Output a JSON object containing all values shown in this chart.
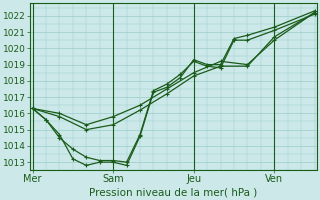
{
  "xlabel": "Pression niveau de la mer( hPa )",
  "bg_color": "#cce8e8",
  "grid_color": "#99cccc",
  "line_color": "#1a5c1a",
  "ylim": [
    1012.5,
    1022.8
  ],
  "yticks": [
    1013,
    1014,
    1015,
    1016,
    1017,
    1018,
    1019,
    1020,
    1021,
    1022
  ],
  "xlim": [
    -0.1,
    10.6
  ],
  "day_positions": [
    0.0,
    3.0,
    6.0,
    9.0
  ],
  "day_labels": [
    "Mer",
    "Sam",
    "Jeu",
    "Ven"
  ],
  "series": [
    {
      "x": [
        0,
        0.5,
        1.0,
        1.5,
        2.0,
        2.5,
        3.0,
        3.5,
        4.0,
        4.5,
        5.0,
        5.5,
        6.0,
        6.5,
        7.0,
        7.5,
        8.0,
        9.0,
        10.5
      ],
      "y": [
        1016.3,
        1015.6,
        1014.7,
        1013.2,
        1012.8,
        1013.0,
        1013.0,
        1012.8,
        1014.6,
        1017.3,
        1017.6,
        1018.2,
        1019.3,
        1019.0,
        1019.0,
        1020.6,
        1020.8,
        1021.3,
        1022.3
      ]
    },
    {
      "x": [
        0,
        0.5,
        1.0,
        1.5,
        2.0,
        2.5,
        3.0,
        3.5,
        4.0,
        4.5,
        5.0,
        5.5,
        6.0,
        6.5,
        7.0,
        7.5,
        8.0,
        9.0,
        10.5
      ],
      "y": [
        1016.3,
        1015.6,
        1014.5,
        1013.8,
        1013.3,
        1013.1,
        1013.1,
        1013.0,
        1014.7,
        1017.4,
        1017.8,
        1018.4,
        1019.2,
        1018.9,
        1018.8,
        1020.5,
        1020.5,
        1021.1,
        1022.1
      ]
    },
    {
      "x": [
        0,
        1.0,
        2.0,
        3.0,
        4.0,
        5.0,
        6.0,
        7.0,
        8.0,
        9.0,
        10.5
      ],
      "y": [
        1016.3,
        1016.0,
        1015.3,
        1015.8,
        1016.5,
        1017.5,
        1018.5,
        1019.2,
        1019.0,
        1020.5,
        1022.2
      ]
    },
    {
      "x": [
        0,
        1.0,
        2.0,
        3.0,
        4.0,
        5.0,
        6.0,
        7.0,
        8.0,
        9.0,
        10.5
      ],
      "y": [
        1016.3,
        1015.8,
        1015.0,
        1015.3,
        1016.2,
        1017.2,
        1018.3,
        1018.9,
        1018.9,
        1020.7,
        1022.2
      ]
    }
  ],
  "marker_size": 2.5,
  "line_width": 0.9
}
